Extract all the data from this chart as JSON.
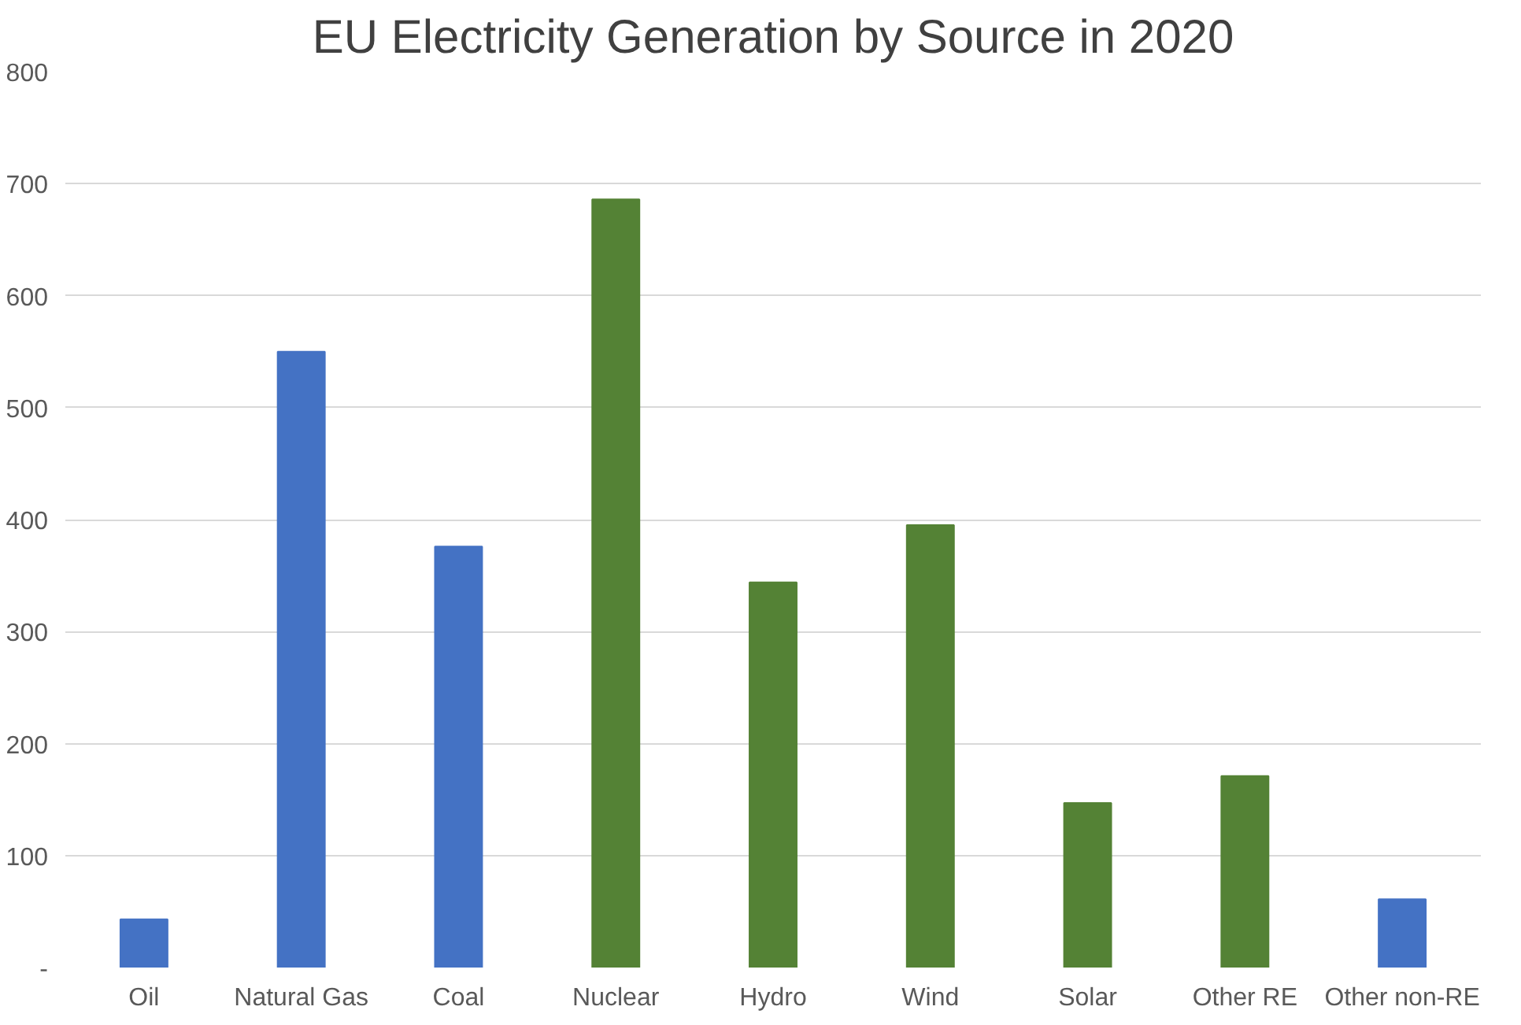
{
  "chart_data": {
    "type": "bar",
    "title": "EU Electricity Generation by Source in 2020",
    "categories": [
      "Oil",
      "Natural Gas",
      "Coal",
      "Nuclear",
      "Hydro",
      "Wind",
      "Solar",
      "Other RE",
      "Other non-RE"
    ],
    "values": [
      43,
      550,
      376,
      686,
      344,
      395,
      147,
      171,
      61
    ],
    "colors": [
      "#4472c4",
      "#4472c4",
      "#4472c4",
      "#548235",
      "#548235",
      "#548235",
      "#548235",
      "#548235",
      "#4472c4"
    ],
    "ylim": [
      0,
      800
    ],
    "yticks": [
      {
        "value": 0,
        "label": "-"
      },
      100,
      200,
      300,
      400,
      500,
      600,
      700,
      800
    ],
    "grid": "y"
  }
}
